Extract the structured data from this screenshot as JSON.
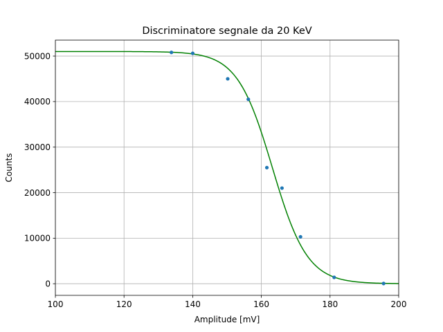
{
  "chart_data": {
    "type": "scatter",
    "title": "Discriminatore segnale da 20 KeV",
    "xlabel": "Amplitude [mV]",
    "ylabel": "Counts",
    "xlim": [
      100,
      200
    ],
    "ylim": [
      -2550,
      53500
    ],
    "xticks": [
      100,
      120,
      140,
      160,
      180,
      200
    ],
    "yticks": [
      0,
      10000,
      20000,
      30000,
      40000,
      50000
    ],
    "grid": true,
    "series": [
      {
        "kind": "points",
        "color": "#1f77b4",
        "x": [
          133.8,
          140.0,
          150.2,
          156.2,
          161.6,
          166.0,
          171.4,
          181.2,
          195.6
        ],
        "y": [
          50800,
          50600,
          45000,
          40500,
          25500,
          21000,
          10300,
          1400,
          50
        ]
      },
      {
        "kind": "fit-line",
        "color": "#008000",
        "function": "sigmoid",
        "amplitude": 51000,
        "center": 163.2,
        "width": 5.1
      }
    ]
  }
}
